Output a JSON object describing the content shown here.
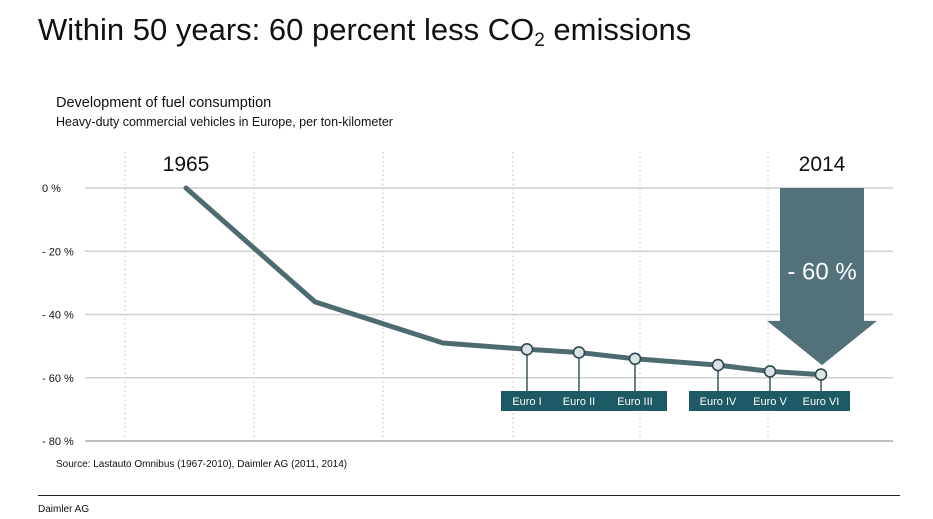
{
  "slide": {
    "title_main": "Within 50 years: 60 percent less CO",
    "title_sub": "2",
    "title_end": " emissions"
  },
  "chart": {
    "title": "Development of fuel consumption",
    "subtitle": "Heavy-duty commercial vehicles in Europe, per ton-kilometer",
    "source": "Source: Lastauto Omnibus (1967-2010), Daimler AG (2011, 2014)"
  },
  "footer": {
    "brand": "Daimler AG"
  },
  "chart_data": {
    "type": "line",
    "title": "Development of fuel consumption",
    "subtitle": "Heavy-duty commercial vehicles in Europe, per ton-kilometer",
    "ylim": [
      -80,
      0
    ],
    "y_ticks": [
      0,
      -20,
      -40,
      -60,
      -80
    ],
    "y_tick_labels": [
      "0 %",
      "- 20 %",
      "- 40 %",
      "- 60 %",
      "- 80 %"
    ],
    "grid": true,
    "points": [
      {
        "year": 1965,
        "value": 0
      },
      {
        "year": 1975,
        "value": -36
      },
      {
        "year": 1985,
        "value": -49
      },
      {
        "year": 1991,
        "value": -51,
        "label": "Euro I"
      },
      {
        "year": 1995,
        "value": -52,
        "label": "Euro II"
      },
      {
        "year": 2000,
        "value": -54,
        "label": "Euro III"
      },
      {
        "year": 2005,
        "value": -56,
        "label": "Euro IV"
      },
      {
        "year": 2009,
        "value": -58,
        "label": "Euro V"
      },
      {
        "year": 2013,
        "value": -59,
        "label": "Euro VI"
      }
    ],
    "year_labels": [
      {
        "text": "1965",
        "year": 1965
      },
      {
        "text": "2014",
        "year": 2014
      }
    ],
    "reduction_arrow": {
      "label": "- 60 %",
      "from": 0,
      "to": -56
    },
    "colors": {
      "line": "#4f6b72",
      "marker_fill": "#dde3e5",
      "euro_box": "#1e5a66",
      "euro_text": "#ffffff",
      "arrow": "#52717a",
      "grid": "#c8c8c8",
      "baseline": "#aaaaaa"
    }
  }
}
